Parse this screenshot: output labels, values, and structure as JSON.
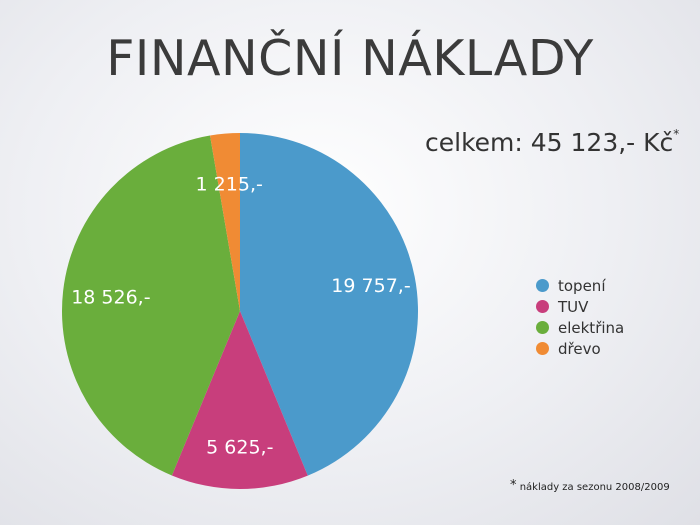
{
  "slide": {
    "title": "FINANČNÍ NÁKLADY",
    "total": "celkem: 45 123,- Kč",
    "total_mark": "*",
    "footnote_mark": "*",
    "footnote": "náklady za sezonu 2008/2009"
  },
  "chart_data": {
    "type": "pie",
    "title": "FINANČNÍ NÁKLADY",
    "categories": [
      "topení",
      "TUV",
      "elektřina",
      "dřevo"
    ],
    "values": [
      19757,
      5625,
      18526,
      1215
    ],
    "labels": [
      "19 757,-",
      "5 625,-",
      "18 526,-",
      "1 215,-"
    ],
    "colors": [
      "#4b9acb",
      "#c83e7c",
      "#6aae3c",
      "#f08b34"
    ],
    "legend": "right",
    "start_angle": "top",
    "direction": "clockwise"
  }
}
